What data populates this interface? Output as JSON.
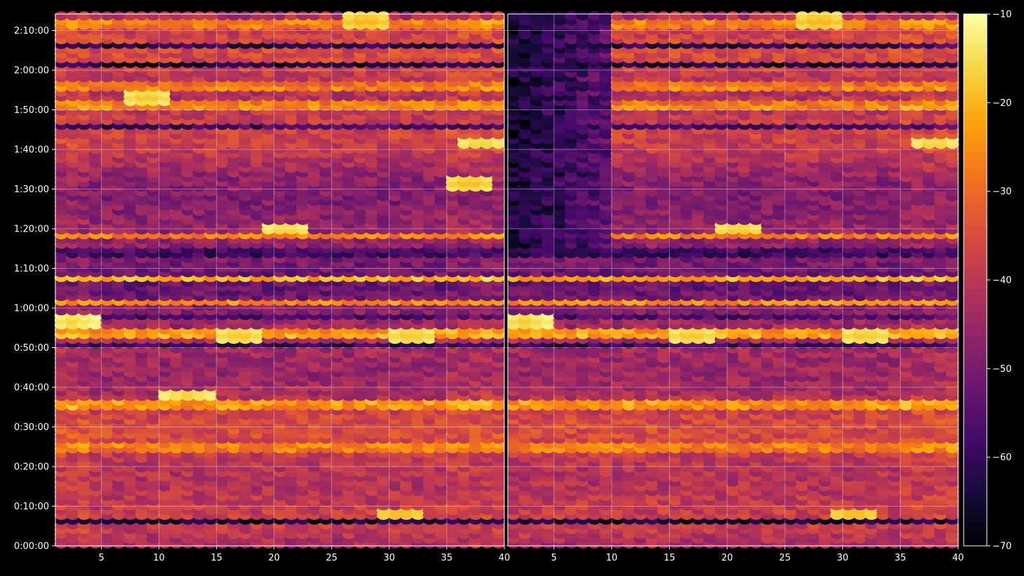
{
  "chart_data": {
    "type": "heatmap",
    "panels": [
      {
        "name": "",
        "xlim": [
          1,
          40
        ],
        "x_ticks": [
          5,
          10,
          15,
          20,
          25,
          30,
          35,
          40
        ]
      },
      {
        "name": "",
        "xlim": [
          1,
          40
        ],
        "x_ticks": [
          5,
          10,
          15,
          20,
          25,
          30,
          35,
          40
        ]
      }
    ],
    "y_axis": {
      "ylim_seconds": [
        0,
        8050
      ],
      "ticks": [
        {
          "seconds": 0,
          "label": "0:00:00"
        },
        {
          "seconds": 600,
          "label": "0:10:00"
        },
        {
          "seconds": 1200,
          "label": "0:20:00"
        },
        {
          "seconds": 1800,
          "label": "0:30:00"
        },
        {
          "seconds": 2400,
          "label": "0:40:00"
        },
        {
          "seconds": 3000,
          "label": "0:50:00"
        },
        {
          "seconds": 3600,
          "label": "1:00:00"
        },
        {
          "seconds": 4200,
          "label": "1:10:00"
        },
        {
          "seconds": 4800,
          "label": "1:20:00"
        },
        {
          "seconds": 5400,
          "label": "1:30:00"
        },
        {
          "seconds": 6000,
          "label": "1:40:00"
        },
        {
          "seconds": 6600,
          "label": "1:50:00"
        },
        {
          "seconds": 7200,
          "label": "2:00:00"
        },
        {
          "seconds": 7800,
          "label": "2:10:00"
        }
      ]
    },
    "colorbar": {
      "colormap": "inferno",
      "vmin": -70,
      "vmax": -10,
      "ticks": [
        -10,
        -20,
        -30,
        -40,
        -50,
        -60,
        -70
      ]
    },
    "grid": true,
    "highlight_rows": [
      {
        "y_seconds": 4050,
        "value": -22
      },
      {
        "y_seconds": 3700,
        "value": -25
      },
      {
        "y_seconds": 3250,
        "value": -26
      },
      {
        "y_seconds": 2150,
        "value": -27
      },
      {
        "y_seconds": 1500,
        "value": -30
      },
      {
        "y_seconds": 4700,
        "value": -28
      },
      {
        "y_seconds": 6700,
        "value": -30
      },
      {
        "y_seconds": 7000,
        "value": -31
      },
      {
        "y_seconds": 7900,
        "value": -30
      }
    ],
    "dark_rows": [
      {
        "y_seconds": 400,
        "value": -66
      },
      {
        "y_seconds": 3050,
        "value": -60
      },
      {
        "y_seconds": 3500,
        "value": -58
      },
      {
        "y_seconds": 4450,
        "value": -62
      },
      {
        "y_seconds": 6350,
        "value": -60
      },
      {
        "y_seconds": 7300,
        "value": -64
      },
      {
        "y_seconds": 7600,
        "value": -62
      }
    ],
    "hot_spots": [
      {
        "panel": 0,
        "x": 2.5,
        "y_seconds": 3400,
        "value": -17
      },
      {
        "panel": 0,
        "x": 17,
        "y_seconds": 3200,
        "value": -19
      },
      {
        "panel": 0,
        "x": 32,
        "y_seconds": 3200,
        "value": -19
      },
      {
        "panel": 0,
        "x": 12.5,
        "y_seconds": 2300,
        "value": -18
      },
      {
        "panel": 0,
        "x": 21,
        "y_seconds": 4800,
        "value": -18
      },
      {
        "panel": 0,
        "x": 31,
        "y_seconds": 500,
        "value": -21
      },
      {
        "panel": 0,
        "x": 9,
        "y_seconds": 6800,
        "value": -19
      },
      {
        "panel": 0,
        "x": 38,
        "y_seconds": 6100,
        "value": -18
      },
      {
        "panel": 0,
        "x": 37,
        "y_seconds": 5500,
        "value": -20
      },
      {
        "panel": 0,
        "x": 28,
        "y_seconds": 7950,
        "value": -21
      },
      {
        "panel": 1,
        "x": 2.5,
        "y_seconds": 3400,
        "value": -18
      },
      {
        "panel": 1,
        "x": 17,
        "y_seconds": 3200,
        "value": -19
      },
      {
        "panel": 1,
        "x": 32,
        "y_seconds": 3200,
        "value": -19
      },
      {
        "panel": 1,
        "x": 21,
        "y_seconds": 4800,
        "value": -19
      },
      {
        "panel": 1,
        "x": 31,
        "y_seconds": 500,
        "value": -21
      },
      {
        "panel": 1,
        "x": 38,
        "y_seconds": 6100,
        "value": -18
      },
      {
        "panel": 1,
        "x": 28,
        "y_seconds": 7950,
        "value": -21
      }
    ],
    "dark_column_regions": [
      {
        "panel": 1,
        "x_range": [
          1,
          10
        ],
        "y_range_seconds": [
          4500,
          8050
        ],
        "value": -65
      }
    ]
  }
}
